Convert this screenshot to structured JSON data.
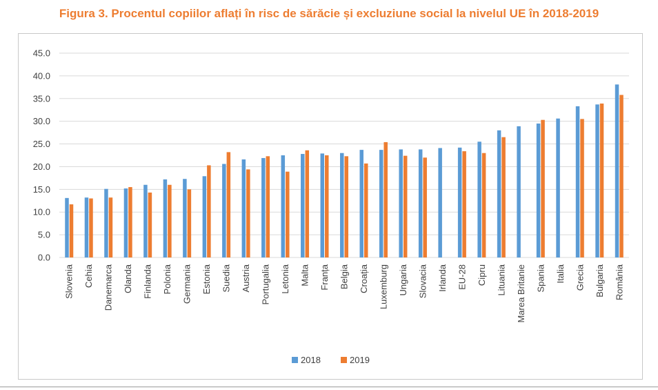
{
  "title": "Figura 3. Procentul copiilor aflați în risc de sărăcie și excluziune social la nivelul UE în 2018-2019",
  "colors": {
    "title": "#ED7D31",
    "series_2018": "#5B9BD5",
    "series_2019": "#ED7D31",
    "grid": "#d9d9d9",
    "text": "#404040"
  },
  "chart_data": {
    "type": "bar",
    "title": "",
    "xlabel": "",
    "ylabel": "",
    "ylim": [
      0,
      45
    ],
    "yticks": [
      "0.0",
      "5.0",
      "10.0",
      "15.0",
      "20.0",
      "25.0",
      "30.0",
      "35.0",
      "40.0",
      "45.0"
    ],
    "grid": true,
    "legend_position": "bottom",
    "categories": [
      "Slovenia",
      "Cehia",
      "Danemarca",
      "Olanda",
      "Finlanda",
      "Polonia",
      "Germania",
      "Estonia",
      "Suedia",
      "Austria",
      "Portugalia",
      "Letonia",
      "Malta",
      "Franța",
      "Belgia",
      "Croația",
      "Luxemburg",
      "Ungaria",
      "Slovacia",
      "Irlanda",
      "EU-28",
      "Cipru",
      "Lituania",
      "Marea Britanie",
      "Spania",
      "Italia",
      "Grecia",
      "Bulgaria",
      "România"
    ],
    "series": [
      {
        "name": "2018",
        "values": [
          13.1,
          13.2,
          15.1,
          15.2,
          16.0,
          17.2,
          17.3,
          17.9,
          20.6,
          21.6,
          21.9,
          22.5,
          22.8,
          22.9,
          23.0,
          23.7,
          23.7,
          23.8,
          23.8,
          24.1,
          24.2,
          25.5,
          28.0,
          28.9,
          29.5,
          30.6,
          33.3,
          33.7,
          38.1
        ]
      },
      {
        "name": "2019",
        "values": [
          11.7,
          13.0,
          13.2,
          15.5,
          14.3,
          16.0,
          15.0,
          20.3,
          23.2,
          19.4,
          22.3,
          18.9,
          23.6,
          22.5,
          22.3,
          20.7,
          25.4,
          22.4,
          22.0,
          null,
          23.4,
          23.0,
          26.5,
          null,
          30.3,
          null,
          30.5,
          33.9,
          35.8
        ]
      }
    ]
  }
}
